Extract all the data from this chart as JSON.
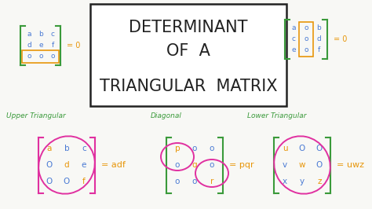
{
  "bg_color": "#f8f8f5",
  "title_lines": [
    "DETERMINANT",
    "OF  A",
    "TRIANGULAR  MATRIX"
  ],
  "title_font_size": 15,
  "title_color": "#222222",
  "green_color": "#3a9a3a",
  "blue_color": "#4a7ad4",
  "orange_color": "#e8960a",
  "pink_color": "#e030a0",
  "section_labels": [
    "Upper Triangular",
    "Diagonal",
    "Lower Triangular"
  ],
  "upper_tri_result": "= adf",
  "diagonal_result": "= pqr",
  "lower_tri_result": "= uwz"
}
